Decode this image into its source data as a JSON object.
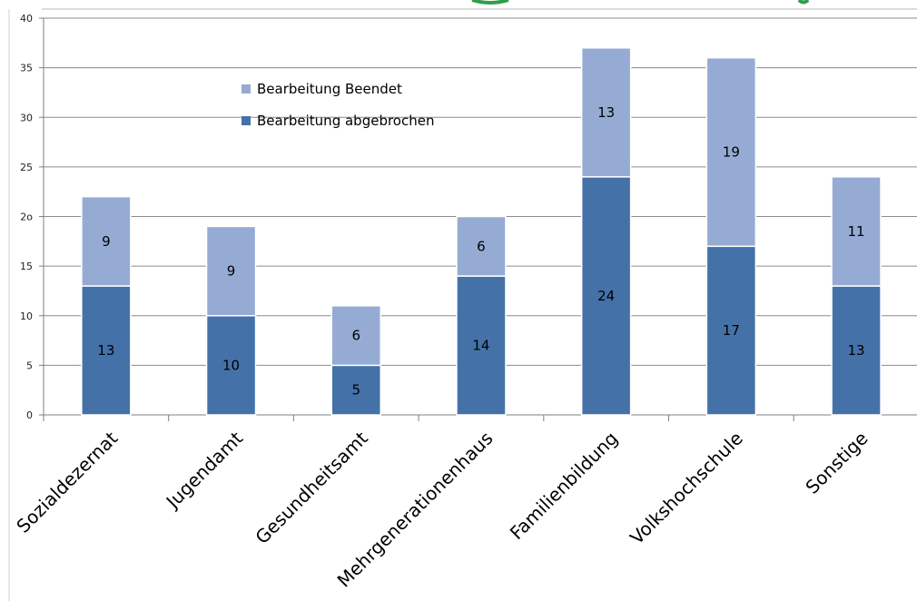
{
  "chart_data": {
    "type": "bar",
    "stacked": true,
    "categories": [
      "Sozialdezernat",
      "Jugendamt",
      "Gesundheitsamt",
      "Mehrgenerationenhaus",
      "Familienbildung",
      "Volkshochschule",
      "Sonstige"
    ],
    "series": [
      {
        "name": "Bearbeitung abgebrochen",
        "values": [
          13,
          10,
          5,
          14,
          24,
          17,
          13
        ],
        "color": "#4472a8"
      },
      {
        "name": "Bearbeitung Beendet",
        "values": [
          9,
          9,
          6,
          6,
          13,
          19,
          11
        ],
        "color": "#95abd4"
      }
    ],
    "ylim": [
      0,
      40
    ],
    "yticks": [
      0,
      5,
      10,
      15,
      20,
      25,
      30,
      35,
      40
    ],
    "ytick_labels": [
      "0",
      "5",
      "10",
      "15",
      "2ο",
      "25",
      "30",
      "35",
      "40"
    ],
    "grid": true,
    "legend_placement": "top-left",
    "legend_order": [
      1,
      0
    ]
  }
}
